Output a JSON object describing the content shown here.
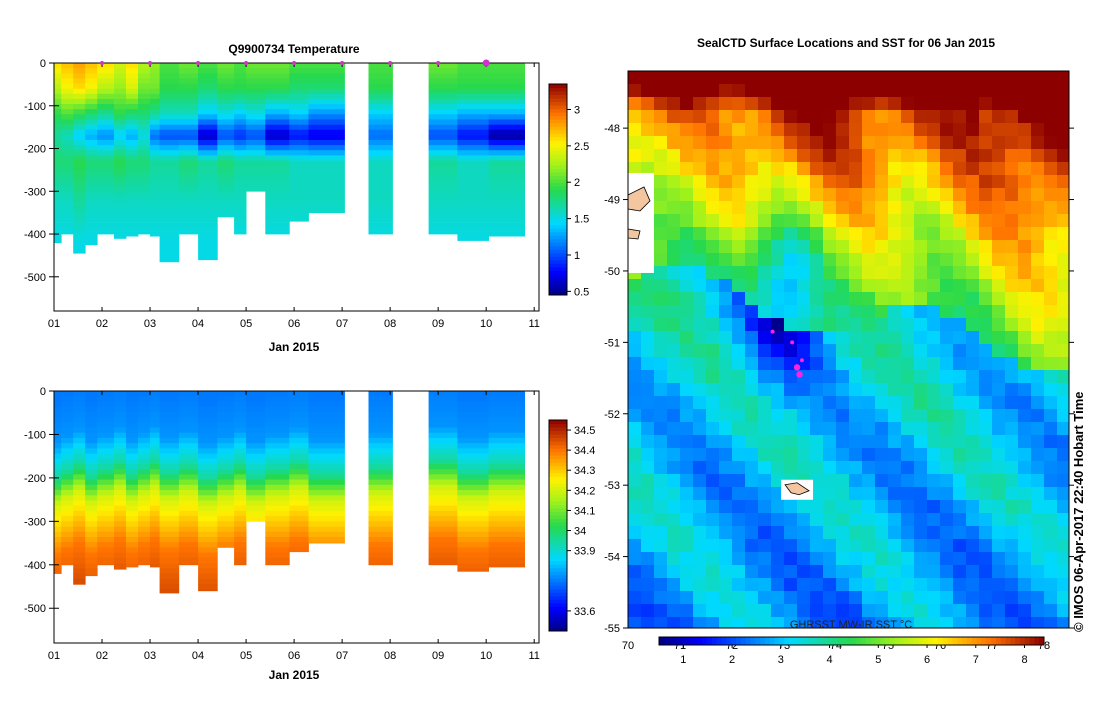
{
  "temperature_panel": {
    "title": "Q9900734  Temperature",
    "xlabel": "Jan 2015",
    "x_ticks": [
      "01",
      "02",
      "03",
      "04",
      "05",
      "06",
      "07",
      "08",
      "09",
      "10",
      "11"
    ],
    "y_ticks": [
      "0",
      "-100",
      "-200",
      "-300",
      "-400",
      "-500"
    ],
    "colorbar_ticks": [
      "0.5",
      "1",
      "1.5",
      "2",
      "2.5",
      "3"
    ],
    "colorbar_range": [
      0.45,
      3.35
    ]
  },
  "salinity_panel": {
    "title": "",
    "xlabel": "Jan 2015",
    "x_ticks": [
      "01",
      "02",
      "03",
      "04",
      "05",
      "06",
      "07",
      "08",
      "09",
      "10",
      "11"
    ],
    "y_ticks": [
      "0",
      "-100",
      "-200",
      "-300",
      "-400",
      "-500"
    ],
    "colorbar_ticks": [
      "33.6",
      "33.9",
      "34",
      "34.1",
      "34.2",
      "34.3",
      "34.4",
      "34.5"
    ],
    "colorbar_tick_values": [
      33.6,
      33.9,
      34.0,
      34.1,
      34.2,
      34.3,
      34.4,
      34.5
    ],
    "colorbar_range": [
      33.5,
      34.55
    ]
  },
  "map_panel": {
    "title": "SealCTD Surface Locations and SST for 06 Jan 2015",
    "x_ticks": [
      "70",
      "71",
      "72",
      "73",
      "74",
      "75",
      "76",
      "77",
      "78"
    ],
    "y_ticks": [
      "-48",
      "-49",
      "-50",
      "-51",
      "-52",
      "-53",
      "-54",
      "-55"
    ],
    "sst_label": "GHRSST MW-IR SST °C",
    "sst_ticks": [
      "1",
      "2",
      "3",
      "4",
      "5",
      "6",
      "7",
      "8"
    ]
  },
  "credit": "© IMOS 06-Apr-2017 22:40 Hobart Time",
  "chart_data": [
    {
      "type": "heatmap",
      "name": "temperature",
      "title": "Q9900734  Temperature",
      "xlabel": "Jan 2015",
      "ylabel": "",
      "xlim": [
        1,
        11.1
      ],
      "ylim": [
        -580,
        0
      ],
      "profiles": [
        {
          "x0": 1.0,
          "x1": 1.15,
          "depth": 420,
          "t": [
            2.6,
            2.3,
            1.9,
            1.7,
            1.8,
            1.6,
            1.5
          ]
        },
        {
          "x0": 1.15,
          "x1": 1.4,
          "depth": 400,
          "t": [
            2.7,
            2.5,
            2.0,
            1.6,
            1.8,
            1.6,
            1.5
          ]
        },
        {
          "x0": 1.4,
          "x1": 1.65,
          "depth": 445,
          "t": [
            2.8,
            2.6,
            1.9,
            1.4,
            1.9,
            1.7,
            1.5
          ]
        },
        {
          "x0": 1.65,
          "x1": 1.9,
          "depth": 425,
          "t": [
            2.7,
            2.5,
            1.8,
            1.3,
            1.8,
            1.6,
            1.5
          ]
        },
        {
          "x0": 1.9,
          "x1": 2.25,
          "depth": 400,
          "t": [
            2.6,
            2.3,
            1.7,
            1.2,
            1.8,
            1.6,
            1.5
          ]
        },
        {
          "x0": 2.25,
          "x1": 2.5,
          "depth": 410,
          "t": [
            2.4,
            2.2,
            1.9,
            1.4,
            1.9,
            1.6,
            1.5
          ]
        },
        {
          "x0": 2.5,
          "x1": 2.75,
          "depth": 405,
          "t": [
            2.6,
            2.4,
            1.8,
            1.3,
            1.8,
            1.6,
            1.5
          ]
        },
        {
          "x0": 2.75,
          "x1": 3.0,
          "depth": 400,
          "t": [
            2.3,
            2.1,
            1.8,
            1.5,
            1.8,
            1.6,
            1.5
          ]
        },
        {
          "x0": 3.0,
          "x1": 3.2,
          "depth": 405,
          "t": [
            2.2,
            2.1,
            1.7,
            1.1,
            1.7,
            1.6,
            1.5
          ]
        },
        {
          "x0": 3.2,
          "x1": 3.6,
          "depth": 465,
          "t": [
            2.0,
            1.9,
            1.6,
            1.0,
            1.7,
            1.6,
            1.5
          ]
        },
        {
          "x0": 3.6,
          "x1": 4.0,
          "depth": 400,
          "t": [
            2.1,
            1.9,
            1.6,
            1.0,
            1.8,
            1.6,
            1.5
          ]
        },
        {
          "x0": 4.0,
          "x1": 4.4,
          "depth": 460,
          "t": [
            2.0,
            1.8,
            1.4,
            0.6,
            1.7,
            1.6,
            1.5
          ]
        },
        {
          "x0": 4.4,
          "x1": 4.75,
          "depth": 360,
          "t": [
            2.1,
            1.9,
            1.5,
            1.0,
            1.8,
            1.6,
            1.5
          ]
        },
        {
          "x0": 4.75,
          "x1": 5.0,
          "depth": 400,
          "t": [
            2.0,
            1.9,
            1.4,
            0.9,
            1.7,
            1.6,
            1.5
          ]
        },
        {
          "x0": 5.0,
          "x1": 5.4,
          "depth": 300,
          "t": [
            2.1,
            1.9,
            1.5,
            1.0,
            1.7,
            1.6,
            1.5
          ]
        },
        {
          "x0": 5.4,
          "x1": 5.9,
          "depth": 400,
          "t": [
            2.1,
            1.9,
            1.3,
            0.6,
            1.7,
            1.6,
            1.5
          ]
        },
        {
          "x0": 5.9,
          "x1": 6.3,
          "depth": 370,
          "t": [
            2.0,
            1.8,
            1.4,
            0.8,
            1.6,
            1.6,
            1.5
          ]
        },
        {
          "x0": 6.3,
          "x1": 7.05,
          "depth": 350,
          "t": [
            2.0,
            1.8,
            1.2,
            0.7,
            1.6,
            1.6,
            1.5
          ]
        },
        {
          "x0": 7.55,
          "x1": 8.05,
          "depth": 400,
          "t": [
            2.0,
            1.9,
            1.4,
            1.1,
            1.6,
            1.6,
            1.5
          ]
        },
        {
          "x0": 8.8,
          "x1": 9.4,
          "depth": 400,
          "t": [
            2.1,
            1.9,
            1.4,
            1.0,
            1.7,
            1.6,
            1.5
          ]
        },
        {
          "x0": 9.4,
          "x1": 10.05,
          "depth": 415,
          "t": [
            2.0,
            1.9,
            1.3,
            0.8,
            1.6,
            1.6,
            1.5
          ]
        },
        {
          "x0": 10.05,
          "x1": 10.8,
          "depth": 405,
          "t": [
            2.0,
            1.9,
            1.3,
            0.5,
            1.7,
            1.6,
            1.5
          ]
        }
      ],
      "profile_depth_levels": [
        0,
        60,
        120,
        170,
        230,
        320,
        420
      ],
      "colorbar": {
        "min": 0.45,
        "max": 3.35,
        "ticks": [
          0.5,
          1,
          1.5,
          2,
          2.5,
          3
        ]
      },
      "surface_markers_x": [
        2.0,
        3.0,
        4.0,
        5.0,
        6.0,
        7.0,
        8.0,
        9.0,
        10.0
      ]
    },
    {
      "type": "heatmap",
      "name": "salinity",
      "xlabel": "Jan 2015",
      "ylabel": "",
      "xlim": [
        1,
        11.1
      ],
      "ylim": [
        -580,
        0
      ],
      "profile_depth_levels": [
        0,
        100,
        180,
        240,
        300,
        360,
        450
      ],
      "s_levels": [
        33.75,
        33.78,
        33.95,
        34.2,
        34.3,
        34.4,
        34.45
      ],
      "colorbar": {
        "min": 33.5,
        "max": 34.55,
        "ticks": [
          33.6,
          33.9,
          34.0,
          34.1,
          34.2,
          34.3,
          34.4,
          34.5
        ]
      }
    },
    {
      "type": "heatmap",
      "name": "sst_map",
      "title": "SealCTD Surface Locations and SST for 06 Jan 2015",
      "xlim": [
        70,
        79
      ],
      "ylim": [
        -55,
        -47.2
      ],
      "colorbar": {
        "label": "GHRSST MW-IR SST °C",
        "min": 0.5,
        "max": 8.4,
        "ticks": [
          1,
          2,
          3,
          4,
          5,
          6,
          7,
          8
        ]
      },
      "seal_positions": [
        {
          "lon": 72.95,
          "lat": -50.85
        },
        {
          "lon": 73.35,
          "lat": -51.0
        },
        {
          "lon": 73.55,
          "lat": -51.25
        },
        {
          "lon": 73.45,
          "lat": -51.35
        },
        {
          "lon": 73.5,
          "lat": -51.45
        }
      ],
      "islands": [
        {
          "name": "heard",
          "lon": 73.45,
          "lat": -53.05
        },
        {
          "name": "kerguelen",
          "lon": 70.1,
          "lat": -49.3
        }
      ]
    }
  ]
}
